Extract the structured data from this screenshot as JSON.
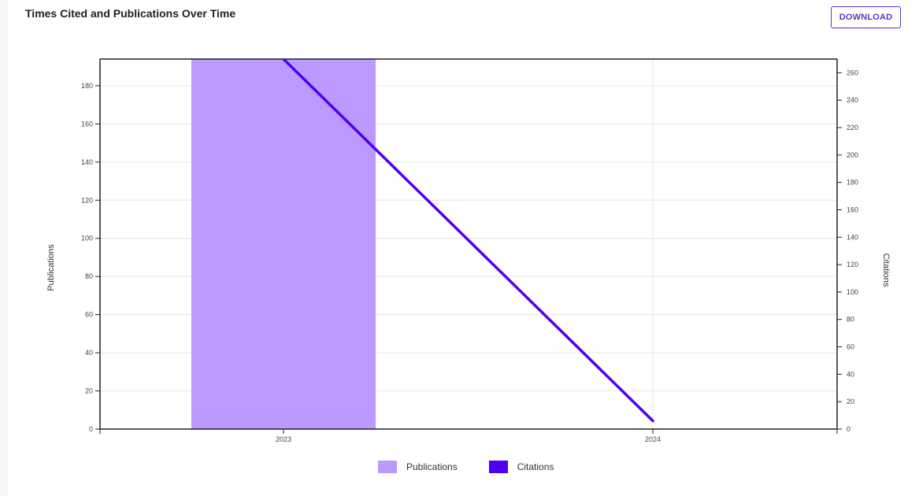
{
  "header": {
    "title": "Times Cited and Publications Over Time",
    "download_label": "DOWNLOAD"
  },
  "colors": {
    "publications": "#bb99ff",
    "citations": "#5000f0",
    "axis": "#222222",
    "grid": "#e6e6e6"
  },
  "chart_data": {
    "type": "bar",
    "title": "Times Cited and Publications Over Time",
    "categories": [
      "2023",
      "2024"
    ],
    "series": [
      {
        "name": "Publications",
        "type": "bar",
        "axis": "left",
        "values": [
          194,
          0
        ]
      },
      {
        "name": "Citations",
        "type": "line",
        "axis": "right",
        "values": [
          270,
          6
        ]
      }
    ],
    "ylabel": "Publications",
    "y2label": "Citations",
    "ylim": [
      0,
      194
    ],
    "y2lim": [
      0,
      270
    ],
    "yticks": [
      0,
      20,
      40,
      60,
      80,
      100,
      120,
      140,
      160,
      180
    ],
    "y2ticks": [
      0,
      20,
      40,
      60,
      80,
      100,
      120,
      140,
      160,
      180,
      200,
      220,
      240,
      260
    ],
    "grid": true,
    "legend": "bottom"
  },
  "legend": {
    "publications_label": "Publications",
    "citations_label": "Citations"
  }
}
